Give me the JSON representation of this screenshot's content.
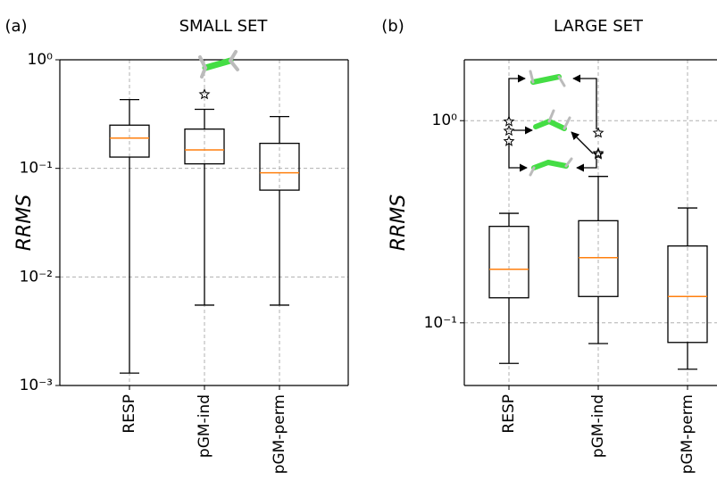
{
  "chart_data": [
    {
      "type": "box",
      "panel_label": "(a)",
      "title": "SMALL SET",
      "ylabel": "RRMS",
      "log_y": true,
      "grid": true,
      "median_color": "#ff7f0e",
      "categories": [
        "RESP",
        "pGM-ind",
        "pGM-perm"
      ],
      "stats": [
        {
          "whislo": 0.0013,
          "q1": 0.127,
          "med": 0.19,
          "q3": 0.25,
          "whishi": 0.43,
          "fliers": []
        },
        {
          "whislo": 0.0055,
          "q1": 0.11,
          "med": 0.148,
          "q3": 0.23,
          "whishi": 0.35,
          "fliers": [
            0.48
          ]
        },
        {
          "whislo": 0.0055,
          "q1": 0.063,
          "med": 0.091,
          "q3": 0.17,
          "whishi": 0.3,
          "fliers": []
        }
      ],
      "ylim": [
        0.001,
        1
      ],
      "yticks": [
        {
          "value": 1,
          "label": "10⁰"
        },
        {
          "value": 0.1,
          "label": "10⁻¹"
        },
        {
          "value": 0.01,
          "label": "10⁻²"
        },
        {
          "value": 0.001,
          "label": "10⁻³"
        }
      ]
    },
    {
      "type": "box",
      "panel_label": "(b)",
      "title": "LARGE SET",
      "ylabel": "RRMS",
      "log_y": true,
      "grid": true,
      "median_color": "#ff7f0e",
      "categories": [
        "RESP",
        "pGM-ind",
        "pGM-perm"
      ],
      "stats": [
        {
          "whislo": 0.063,
          "q1": 0.133,
          "med": 0.184,
          "q3": 0.3,
          "whishi": 0.348,
          "fliers": [
            0.99,
            0.89,
            0.79
          ]
        },
        {
          "whislo": 0.079,
          "q1": 0.135,
          "med": 0.21,
          "q3": 0.32,
          "whishi": 0.53,
          "fliers": [
            0.87,
            0.69,
            0.68
          ]
        },
        {
          "whislo": 0.059,
          "q1": 0.08,
          "med": 0.135,
          "q3": 0.24,
          "whishi": 0.37,
          "fliers": []
        }
      ],
      "ylim": [
        0.049,
        2.0
      ],
      "yticks": [
        {
          "value": 1,
          "label": "10⁰"
        },
        {
          "value": 0.1,
          "label": "10⁻¹"
        }
      ]
    }
  ]
}
